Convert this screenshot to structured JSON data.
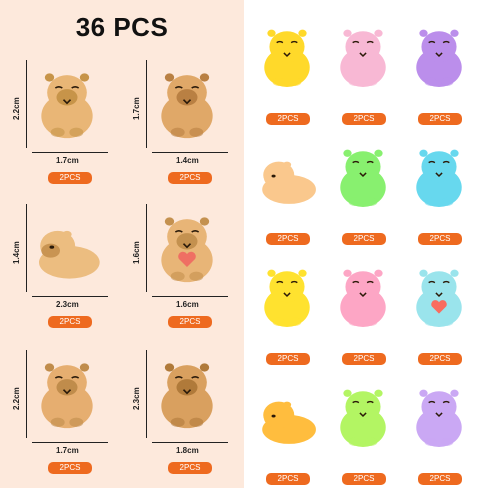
{
  "title": "36 PCS",
  "left_items": [
    {
      "height": "2.2cm",
      "width": "1.7cm",
      "badge": "2PCS",
      "color": "#e9b676",
      "dark": "#c79449"
    },
    {
      "height": "1.7cm",
      "width": "1.4cm",
      "badge": "2PCS",
      "color": "#e0a868",
      "dark": "#b98043"
    },
    {
      "height": "1.4cm",
      "width": "2.3cm",
      "badge": "2PCS",
      "color": "#ecbd80",
      "dark": "#c99452"
    },
    {
      "height": "1.6cm",
      "width": "1.6cm",
      "badge": "2PCS",
      "color": "#e8b577",
      "dark": "#c4914f"
    },
    {
      "height": "2.2cm",
      "width": "1.7cm",
      "badge": "2PCS",
      "color": "#e6ae70",
      "dark": "#c08c4b"
    },
    {
      "height": "2.3cm",
      "width": "1.8cm",
      "badge": "2PCS",
      "color": "#d9a05f",
      "dark": "#b07a3a"
    }
  ],
  "right_items": [
    {
      "badge": "2PCS",
      "color": "#ffd93a"
    },
    {
      "badge": "2PCS",
      "color": "#f4b9d3"
    },
    {
      "badge": "2PCS",
      "color": "#b88fe4"
    },
    {
      "badge": "2PCS",
      "color": "#f6c993"
    },
    {
      "badge": "2PCS",
      "color": "#8fed78"
    },
    {
      "badge": "2PCS",
      "color": "#6fd6ea"
    },
    {
      "badge": "2PCS",
      "color": "#ffe13f"
    },
    {
      "badge": "2PCS",
      "color": "#f7a8c4"
    },
    {
      "badge": "2PCS",
      "color": "#9fe3ea"
    },
    {
      "badge": "2PCS",
      "color": "#ffbe4a"
    },
    {
      "badge": "2PCS",
      "color": "#b7f36e"
    },
    {
      "badge": "2PCS",
      "color": "#c8a9ee"
    }
  ]
}
